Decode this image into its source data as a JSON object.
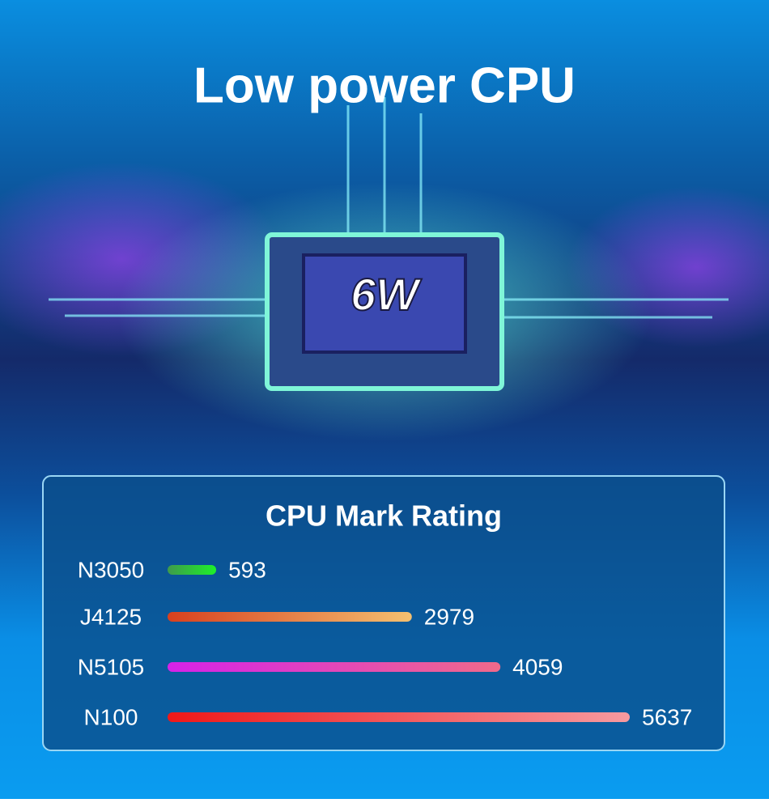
{
  "title": "Low power CPU",
  "chip_label": "6W",
  "chart_data": {
    "type": "bar",
    "orientation": "horizontal",
    "title": "CPU Mark Rating",
    "categories": [
      "N3050",
      "J4125",
      "N5105",
      "N100"
    ],
    "values": [
      593,
      2979,
      4059,
      5637
    ],
    "colors": [
      [
        "#3f9a4c",
        "#1ef02a"
      ],
      [
        "#d8401e",
        "#f4c070"
      ],
      [
        "#d622e8",
        "#f06a8a"
      ],
      [
        "#f01818",
        "#f79aa0"
      ]
    ]
  }
}
